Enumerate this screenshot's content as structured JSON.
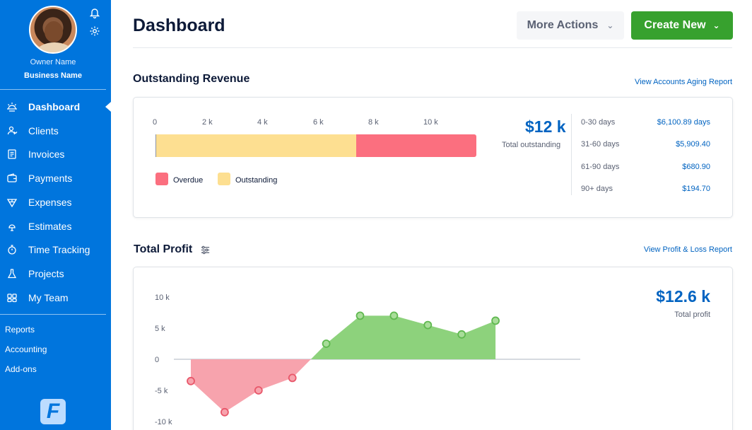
{
  "sidebar": {
    "owner_name": "Owner Name",
    "business_name": "Business Name",
    "icons": {
      "notifications": "bell-icon",
      "settings": "gear-icon"
    },
    "items": [
      {
        "label": "Dashboard",
        "icon": "sun-icon",
        "active": true
      },
      {
        "label": "Clients",
        "icon": "clients-icon"
      },
      {
        "label": "Invoices",
        "icon": "invoice-icon"
      },
      {
        "label": "Payments",
        "icon": "wallet-icon"
      },
      {
        "label": "Expenses",
        "icon": "expenses-icon"
      },
      {
        "label": "Estimates",
        "icon": "estimates-icon"
      },
      {
        "label": "Time Tracking",
        "icon": "stopwatch-icon"
      },
      {
        "label": "Projects",
        "icon": "flask-icon"
      },
      {
        "label": "My Team",
        "icon": "team-icon"
      }
    ],
    "sub_items": [
      "Reports",
      "Accounting",
      "Add-ons"
    ],
    "logo_letter": "F"
  },
  "header": {
    "title": "Dashboard",
    "more_actions_label": "More Actions",
    "create_new_label": "Create New"
  },
  "outstanding_revenue": {
    "title": "Outstanding Revenue",
    "link": "View Accounts Aging Report",
    "axis_ticks": [
      "0",
      "2 k",
      "4 k",
      "6 k",
      "8 k",
      "10 k"
    ],
    "outstanding_value": 7.5,
    "overdue_value": 4.5,
    "axis_max": 12,
    "legend": {
      "overdue": "Overdue",
      "outstanding": "Outstanding"
    },
    "total_amount": "$12 k",
    "total_caption": "Total outstanding",
    "aging": [
      {
        "label": "0-30 days",
        "value": "$6,100.89 days"
      },
      {
        "label": "31-60 days",
        "value": "$5,909.40"
      },
      {
        "label": "61-90 days",
        "value": "$680.90"
      },
      {
        "label": "90+ days",
        "value": "$194.70"
      }
    ],
    "colors": {
      "overdue": "#fb6f7f",
      "outstanding": "#fddf91"
    }
  },
  "total_profit": {
    "title": "Total Profit",
    "link": "View Profit & Loss Report",
    "filter_icon": "sliders-icon",
    "total_amount": "$12.6 k",
    "total_caption": "Total profit"
  },
  "chart_data": {
    "type": "area",
    "title": "Total Profit",
    "y_ticks": [
      "10 k",
      "5 k",
      "0",
      "-5 k",
      "-10 k"
    ],
    "ylim": [
      -10,
      10
    ],
    "series": [
      {
        "name": "Profit",
        "values": [
          -3.5,
          -8.5,
          -5,
          -3,
          2.5,
          7,
          7,
          5.5,
          4,
          6.2
        ]
      }
    ],
    "colors": {
      "positive": "#8dd27c",
      "negative": "#f7a3ad",
      "positive_point": "#5fb84f",
      "negative_point": "#e8576a"
    }
  }
}
